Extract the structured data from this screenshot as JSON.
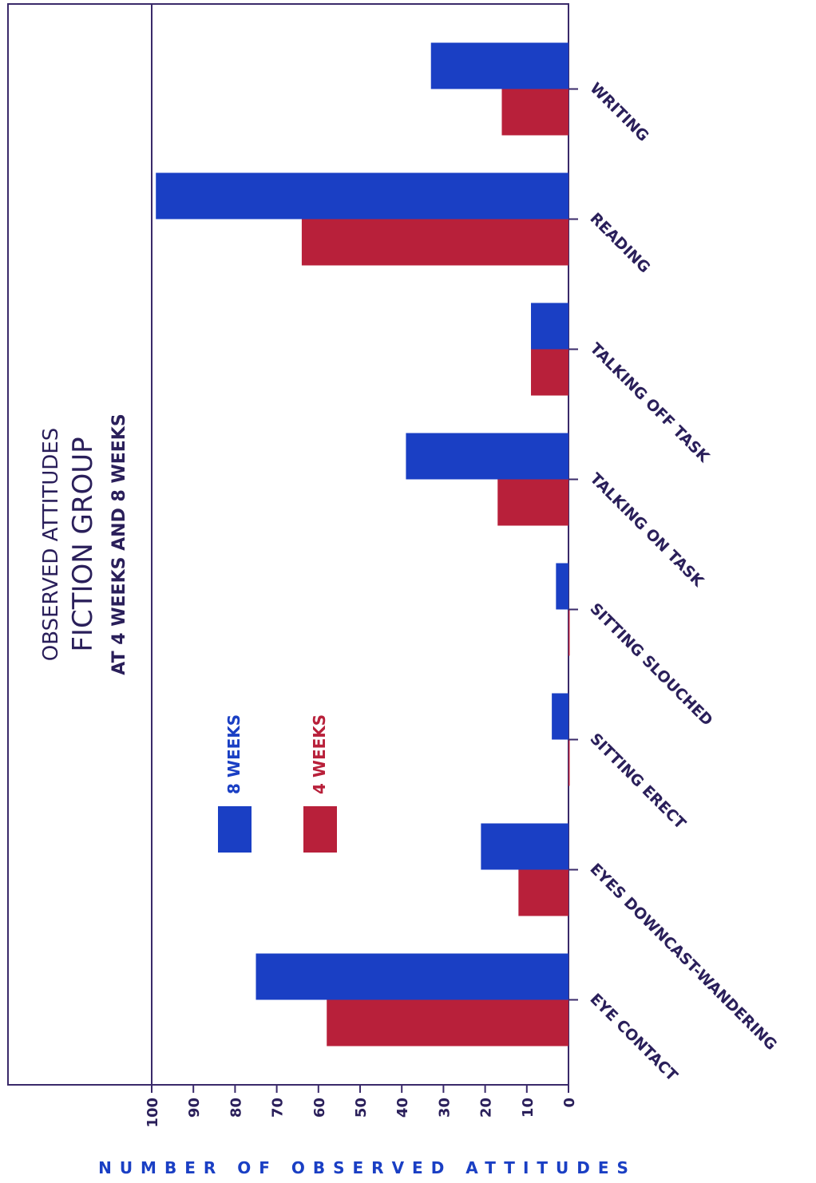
{
  "chart_data": {
    "type": "bar",
    "title": "OBSERVED ATTITUDES",
    "subtitle": "FICTION GROUP",
    "subtitle2": "AT 4 WEEKS AND 8 WEEKS",
    "ylabel": "NUMBER OF OBSERVED ATTITUDES",
    "xlabel": "",
    "ylim": [
      0,
      100
    ],
    "yticks": [
      0,
      10,
      20,
      30,
      40,
      50,
      60,
      70,
      80,
      90,
      100
    ],
    "categories": [
      "EYE CONTACT",
      "EYES DOWNCAST-WANDERING",
      "SITTING ERECT",
      "SITTING SLOUCHED",
      "TALKING ON TASK",
      "TALKING OFF TASK",
      "READING",
      "WRITING"
    ],
    "series": [
      {
        "name": "4 WEEKS",
        "color": "#b8203a",
        "values": [
          58,
          12,
          0,
          0,
          17,
          9,
          64,
          16
        ]
      },
      {
        "name": "8 WEEKS",
        "color": "#1a3fc4",
        "values": [
          75,
          21,
          4,
          3,
          39,
          9,
          99,
          33
        ]
      }
    ],
    "legend_position": "left-center",
    "grid": false
  }
}
